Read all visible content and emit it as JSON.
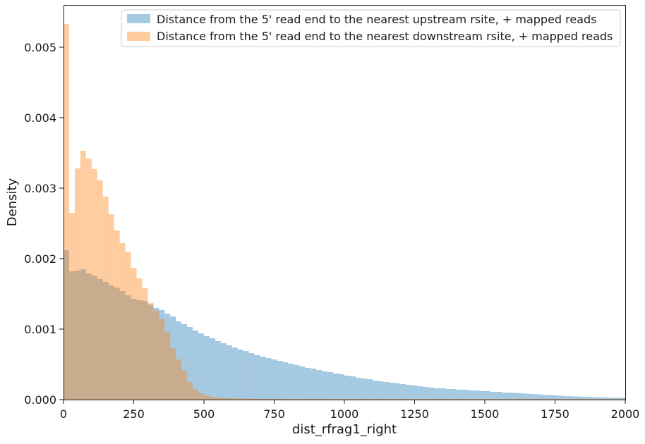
{
  "chart_data": {
    "type": "bar",
    "xlabel": "dist_rfrag1_right",
    "ylabel": "Density",
    "xlim": [
      0,
      2000
    ],
    "ylim": [
      0,
      0.0056
    ],
    "bin_width": 20,
    "x_ticks": [
      "0",
      "250",
      "500",
      "750",
      "1000",
      "1250",
      "1500",
      "1750",
      "2000"
    ],
    "y_ticks": [
      "0.000",
      "0.001",
      "0.002",
      "0.003",
      "0.004",
      "0.005"
    ],
    "legend_position": "top-right",
    "grid": false,
    "series": [
      {
        "name": "Distance from the 5' read end to the nearest upstream rsite, + mapped reads",
        "color": "#1f77b4",
        "opacity": 0.4,
        "values": [
          0.00212,
          0.00182,
          0.00183,
          0.00185,
          0.00179,
          0.00176,
          0.00171,
          0.00167,
          0.00162,
          0.00159,
          0.00154,
          0.00148,
          0.00143,
          0.00141,
          0.0014,
          0.00135,
          0.0013,
          0.00127,
          0.00122,
          0.00118,
          0.00111,
          0.00107,
          0.00103,
          0.00098,
          0.00094,
          0.0009,
          0.00087,
          0.00083,
          0.0008,
          0.00077,
          0.00074,
          0.00071,
          0.00069,
          0.00066,
          0.00063,
          0.00061,
          0.00059,
          0.00057,
          0.00055,
          0.00053,
          0.00051,
          0.00049,
          0.00047,
          0.00045,
          0.00044,
          0.00042,
          0.0004,
          0.00039,
          0.00037,
          0.00036,
          0.00034,
          0.00033,
          0.00031,
          0.0003,
          0.00029,
          0.00027,
          0.00026,
          0.00025,
          0.00024,
          0.00023,
          0.00022,
          0.00021,
          0.0002,
          0.00019,
          0.00018,
          0.00017,
          0.00016,
          0.00016,
          0.00015,
          0.00015,
          0.00014,
          0.00014,
          0.00013,
          0.00013,
          0.00012,
          0.00012,
          0.00011,
          0.00011,
          0.0001,
          0.0001,
          9.5e-05,
          9e-05,
          8.5e-05,
          8e-05,
          7.5e-05,
          7e-05,
          6.5e-05,
          6e-05,
          5.5e-05,
          5e-05,
          4.7e-05,
          4.4e-05,
          4.1e-05,
          3.8e-05,
          3.5e-05,
          3.2e-05,
          3e-05,
          2.8e-05,
          2.6e-05,
          2.4e-05
        ]
      },
      {
        "name": "Distance from the 5' read end to the nearest downstream rsite, + mapped reads",
        "color": "#ff7f0e",
        "opacity": 0.4,
        "values": [
          0.00533,
          0.00265,
          0.00328,
          0.00353,
          0.00342,
          0.00327,
          0.00311,
          0.00288,
          0.00263,
          0.0024,
          0.00222,
          0.0021,
          0.00187,
          0.00172,
          0.00158,
          0.00137,
          0.00126,
          0.00114,
          0.00096,
          0.00073,
          0.00057,
          0.00041,
          0.00025,
          0.00015,
          9e-05,
          6e-05,
          4e-05,
          3e-05,
          2.5e-05,
          2e-05,
          1.8e-05,
          1.6e-05,
          1.5e-05,
          1.4e-05,
          1.3e-05,
          1.2e-05,
          1.2e-05,
          1.1e-05,
          1.1e-05,
          1e-05,
          1e-05,
          1e-05,
          1e-05,
          1e-05,
          1e-05,
          1e-05,
          1e-05,
          1e-05,
          1e-05,
          1e-05,
          1e-05,
          1e-05,
          1e-05,
          1e-05,
          1e-05,
          1e-05,
          1e-05,
          1e-05,
          1e-05,
          1e-05,
          1e-05,
          1e-05,
          1e-05,
          1e-05,
          1e-05,
          1e-05,
          1e-05,
          1e-05,
          1e-05,
          1e-05,
          1e-05,
          1e-05,
          1e-05,
          1e-05,
          1e-05,
          1e-05,
          1e-05,
          1e-05,
          1e-05,
          1e-05,
          1e-05,
          1e-05,
          1e-05,
          1e-05,
          1e-05,
          1e-05,
          1e-05,
          1e-05,
          1e-05,
          1e-05,
          1e-05,
          1e-05,
          1e-05,
          1e-05,
          1e-05,
          1e-05,
          1e-05,
          1e-05,
          1e-05,
          1e-05
        ]
      }
    ]
  }
}
